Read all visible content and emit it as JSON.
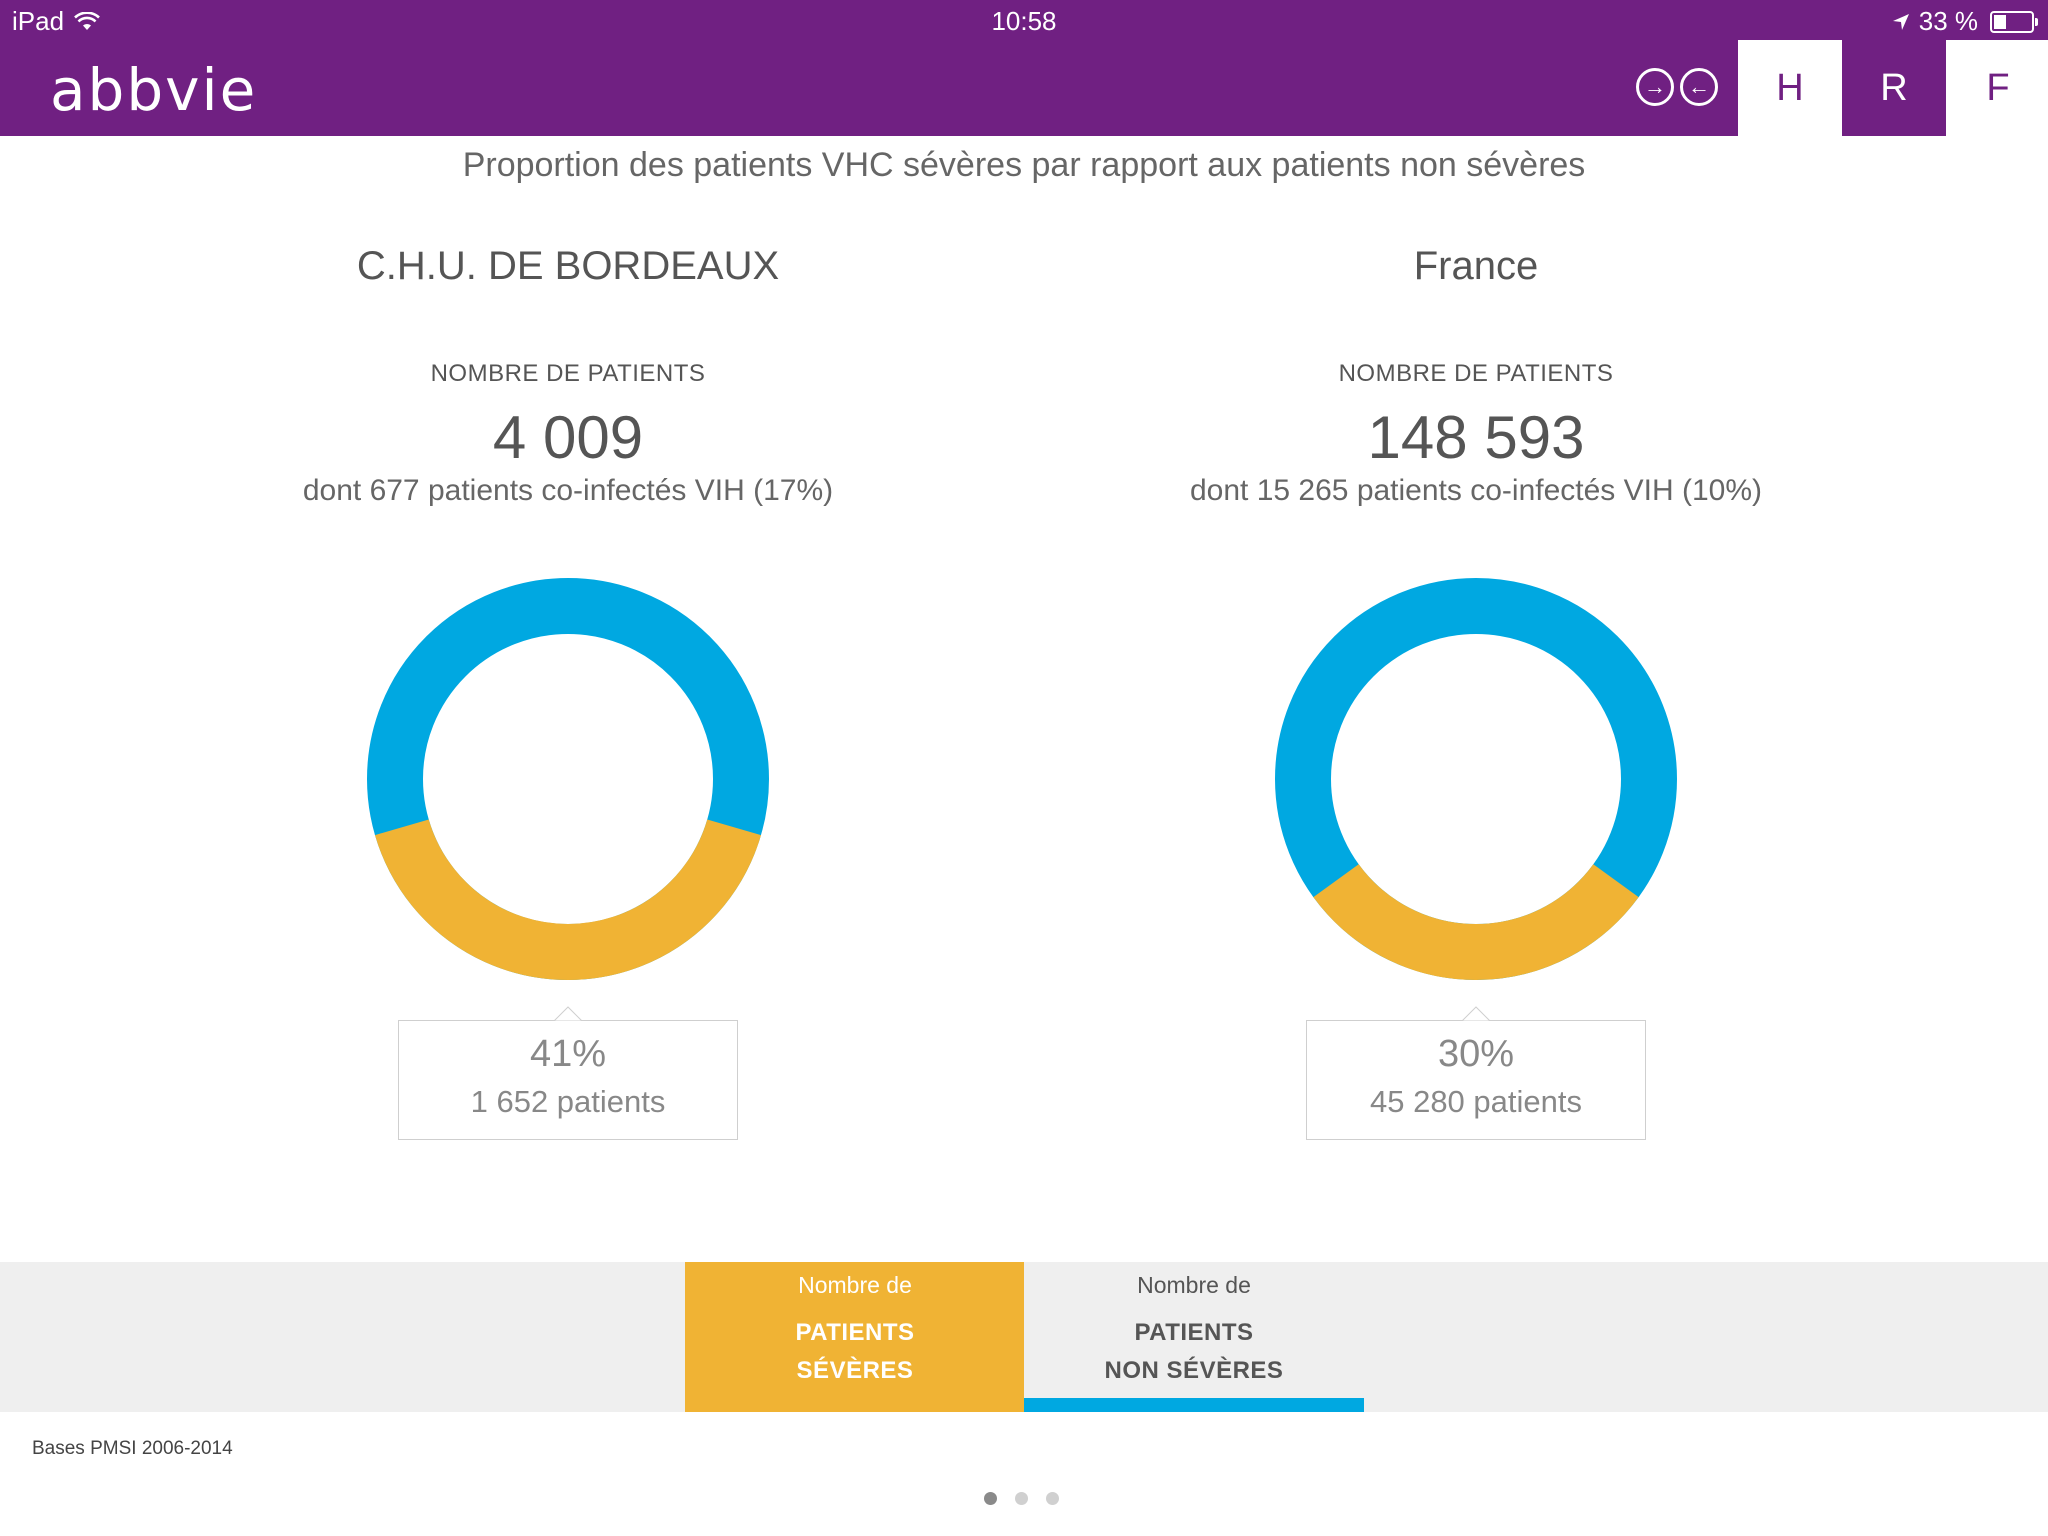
{
  "status_bar": {
    "device": "iPad",
    "time": "10:58",
    "battery": "33 %",
    "battery_level": 0.33
  },
  "header": {
    "logo_text": "abbvie",
    "tabs": [
      {
        "label": "H",
        "active": true
      },
      {
        "label": "R",
        "active": false
      },
      {
        "label": "F",
        "active": false
      }
    ],
    "nav_icons": [
      "arrow-right-circle-icon",
      "arrow-left-circle-icon"
    ]
  },
  "page": {
    "subtitle": "Proportion des patients VHC sévères par rapport aux patients non sévères"
  },
  "panels": [
    {
      "name": "C.H.U. DE BORDEAUX",
      "count_label": "NOMBRE DE PATIENTS",
      "count": "4 009",
      "sub": "dont 677 patients co-infectés VIH (17%)",
      "severe_pct": "41%",
      "severe_patients": "1 652 patients",
      "severe_fraction": 0.41
    },
    {
      "name": "France",
      "count_label": "NOMBRE DE PATIENTS",
      "count": "148 593",
      "sub": "dont 15 265 patients co-infectés VIH (10%)",
      "severe_pct": "30%",
      "severe_patients": "45 280 patients",
      "severe_fraction": 0.3
    }
  ],
  "legend": {
    "severe": {
      "line1": "Nombre de",
      "line2": "PATIENTS",
      "line3": "SÉVÈRES"
    },
    "non_severe": {
      "line1": "Nombre de",
      "line2": "PATIENTS",
      "line3": "NON SÉVÈRES"
    }
  },
  "footer": {
    "source": "Bases PMSI 2006-2014",
    "page_dots": 3,
    "active_dot": 0
  },
  "colors": {
    "brand_purple": "#702082",
    "severe": "#f0b334",
    "non_severe": "#00a8e1"
  }
}
